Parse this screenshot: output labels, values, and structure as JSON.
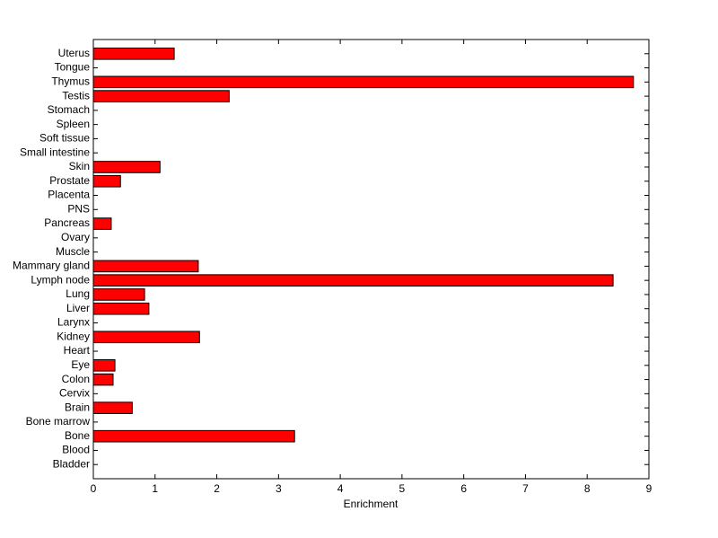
{
  "chart_data": {
    "type": "barh",
    "xlabel": "Enrichment",
    "categories": [
      "Bladder",
      "Blood",
      "Bone",
      "Bone marrow",
      "Brain",
      "Cervix",
      "Colon",
      "Eye",
      "Heart",
      "Kidney",
      "Larynx",
      "Liver",
      "Lung",
      "Lymph node",
      "Mammary gland",
      "Muscle",
      "Ovary",
      "Pancreas",
      "PNS",
      "Placenta",
      "Prostate",
      "Skin",
      "Small intestine",
      "Soft tissue",
      "Spleen",
      "Stomach",
      "Testis",
      "Thymus",
      "Tongue",
      "Uterus"
    ],
    "values": [
      0,
      0,
      3.26,
      0,
      0.63,
      0,
      0.32,
      0.35,
      0,
      1.72,
      0,
      0.9,
      0.83,
      8.42,
      1.7,
      0,
      0,
      0.29,
      0,
      0,
      0.44,
      1.08,
      0,
      0,
      0,
      0,
      2.2,
      8.75,
      0,
      1.31
    ],
    "color": "#ff0000",
    "xlim": [
      0,
      9
    ],
    "xticks": [
      0,
      1,
      2,
      3,
      4,
      5,
      6,
      7,
      8,
      9
    ]
  }
}
